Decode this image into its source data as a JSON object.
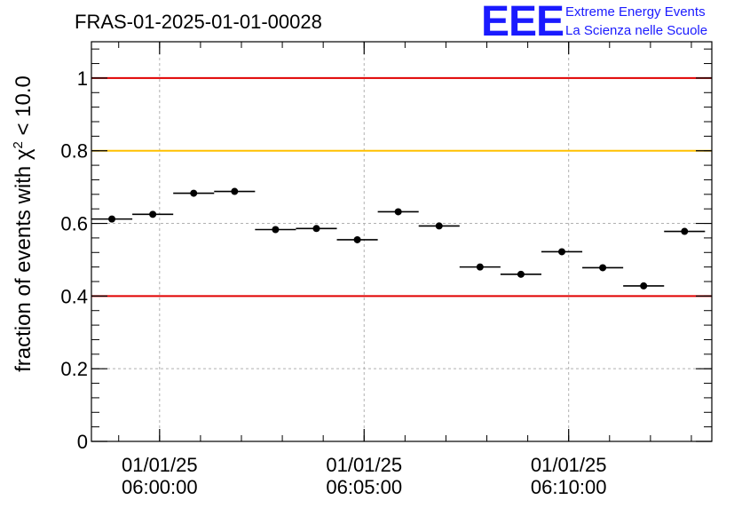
{
  "header": {
    "title": "FRAS-01-2025-01-01-00028",
    "logo_mark": "EEE",
    "logo_line1": "Extreme Energy Events",
    "logo_line2": "La Scienza nelle Scuole"
  },
  "chart_data": {
    "type": "scatter",
    "ylabel": "fraction of events with χ² < 10.0",
    "ylabel_main": "fraction of events with ",
    "ylabel_chi": "χ",
    "ylabel_sup": "2",
    "ylabel_tail": " < 10.0",
    "ylim": [
      0,
      1.1
    ],
    "yticks": [
      0,
      0.2,
      0.4,
      0.6,
      0.8,
      1
    ],
    "ytick_labels": [
      "0",
      "0.2",
      "0.4",
      "0.6",
      "0.8",
      "1"
    ],
    "xlim": [
      "05:58:20",
      "06:13:30"
    ],
    "xticks": [
      {
        "date": "01/01/25",
        "time": "06:00:00"
      },
      {
        "date": "01/01/25",
        "time": "06:05:00"
      },
      {
        "date": "01/01/25",
        "time": "06:10:00"
      }
    ],
    "grid": true,
    "reference_lines": [
      {
        "y": 1.0,
        "color": "#e00000"
      },
      {
        "y": 0.8,
        "color": "#ffc000"
      },
      {
        "y": 0.4,
        "color": "#e00000"
      }
    ],
    "series": [
      {
        "points": [
          {
            "x": "05:58:50",
            "y": 0.612
          },
          {
            "x": "05:59:50",
            "y": 0.625
          },
          {
            "x": "06:00:50",
            "y": 0.683
          },
          {
            "x": "06:01:50",
            "y": 0.688
          },
          {
            "x": "06:02:50",
            "y": 0.583
          },
          {
            "x": "06:03:50",
            "y": 0.586
          },
          {
            "x": "06:04:50",
            "y": 0.555
          },
          {
            "x": "06:05:50",
            "y": 0.632
          },
          {
            "x": "06:06:50",
            "y": 0.593
          },
          {
            "x": "06:07:50",
            "y": 0.48
          },
          {
            "x": "06:08:50",
            "y": 0.46
          },
          {
            "x": "06:09:50",
            "y": 0.522
          },
          {
            "x": "06:10:50",
            "y": 0.478
          },
          {
            "x": "06:11:50",
            "y": 0.428
          },
          {
            "x": "06:12:50",
            "y": 0.578
          }
        ],
        "bin_width_seconds": 60,
        "marker_color": "#000000"
      }
    ]
  }
}
